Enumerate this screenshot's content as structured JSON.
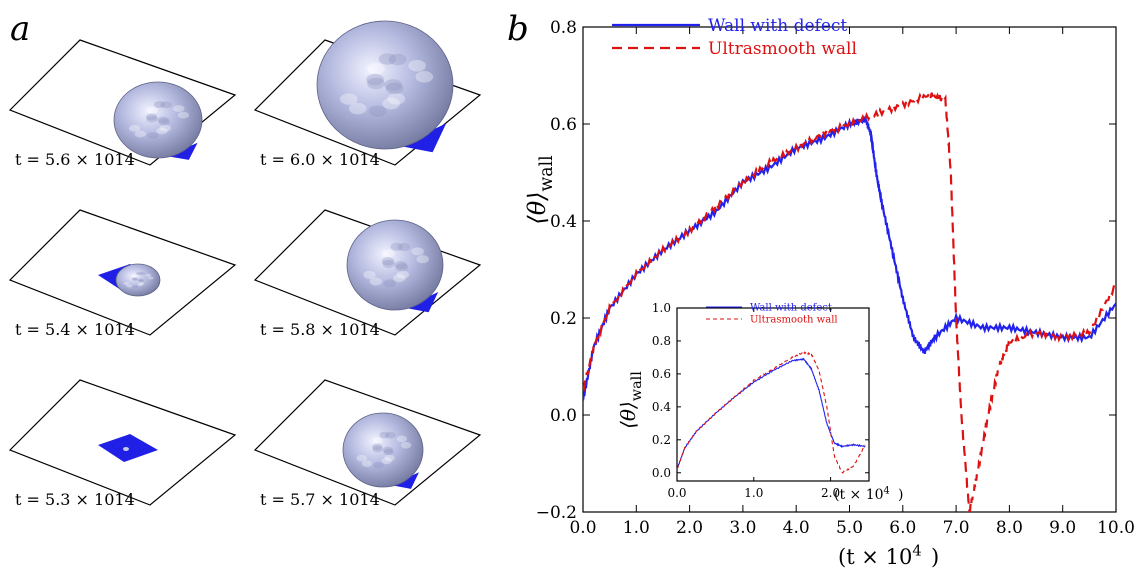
{
  "panel_a": {
    "label": "a",
    "snapshots": [
      {
        "label": "t = 5.6 × 10",
        "exp": "4",
        "state": "small-droplet"
      },
      {
        "label": "t = 6.0 × 10",
        "exp": "4",
        "state": "large-bubble"
      },
      {
        "label": "t = 5.4 × 10",
        "exp": "4",
        "state": "patch-small-droplet"
      },
      {
        "label": "t = 5.8 × 10",
        "exp": "4",
        "state": "medium-bubble"
      },
      {
        "label": "t = 5.3 × 10",
        "exp": "4",
        "state": "patch-only"
      },
      {
        "label": "t = 5.7 × 10",
        "exp": "4",
        "state": "small-bubble"
      }
    ],
    "colors": {
      "defect_patch": "#1f1fe6",
      "bubble": "#a9aed6"
    }
  },
  "chart_data": [
    {
      "type": "line",
      "panel": "b",
      "xlabel": "(t × 10",
      "xlabel_exp": "4",
      "ylabel": "⟨θ⟩",
      "ylabel_sub": "wall",
      "xlim": [
        0,
        10
      ],
      "ylim": [
        -0.2,
        0.8
      ],
      "xticks": [
        "0.0",
        "1.0",
        "2.0",
        "3.0",
        "4.0",
        "5.0",
        "6.0",
        "7.0",
        "8.0",
        "9.0",
        "10.0"
      ],
      "yticks": [
        "−0.2",
        "0.0",
        "0.2",
        "0.4",
        "0.6",
        "0.8"
      ],
      "legend_position": "top-left",
      "series": [
        {
          "name": "Wall with defect",
          "color": "#2222ee",
          "style": "solid",
          "x": [
            0,
            0.2,
            0.5,
            1.0,
            1.5,
            2.0,
            2.5,
            3.0,
            3.5,
            4.0,
            4.5,
            5.0,
            5.3,
            5.4,
            5.5,
            5.6,
            5.8,
            6.0,
            6.2,
            6.4,
            6.6,
            7.0,
            7.5,
            8.0,
            8.5,
            9.0,
            9.5,
            10.0
          ],
          "y": [
            0.03,
            0.14,
            0.22,
            0.29,
            0.34,
            0.38,
            0.42,
            0.48,
            0.51,
            0.55,
            0.57,
            0.6,
            0.61,
            0.58,
            0.5,
            0.44,
            0.34,
            0.24,
            0.16,
            0.13,
            0.16,
            0.2,
            0.18,
            0.18,
            0.17,
            0.16,
            0.16,
            0.23
          ]
        },
        {
          "name": "Ultrasmooth wall",
          "color": "#dd1111",
          "style": "dashed",
          "x": [
            0,
            0.2,
            0.5,
            1.0,
            1.5,
            2.0,
            2.5,
            3.0,
            3.5,
            4.0,
            4.5,
            5.0,
            5.5,
            6.0,
            6.5,
            6.8,
            6.9,
            7.0,
            7.1,
            7.25,
            7.4,
            7.6,
            7.8,
            8.0,
            8.5,
            9.0,
            9.5,
            10.0
          ],
          "y": [
            0.05,
            0.14,
            0.22,
            0.29,
            0.34,
            0.38,
            0.43,
            0.48,
            0.52,
            0.55,
            0.58,
            0.6,
            0.62,
            0.64,
            0.66,
            0.65,
            0.5,
            0.2,
            0.0,
            -0.2,
            -0.12,
            0.0,
            0.1,
            0.15,
            0.17,
            0.16,
            0.17,
            0.27
          ]
        }
      ]
    },
    {
      "type": "line",
      "panel": "b-inset",
      "xlabel": "(t × 10",
      "xlabel_exp": "4",
      "ylabel": "⟨θ⟩",
      "ylabel_sub": "wall",
      "xlim": [
        0,
        2.5
      ],
      "ylim": [
        -0.05,
        1.0
      ],
      "xticks": [
        "0.0",
        "1.0",
        "2.0"
      ],
      "yticks": [
        "0.0",
        "0.2",
        "0.4",
        "0.6",
        "0.8",
        "1.0"
      ],
      "legend_position": "top-right",
      "series": [
        {
          "name": "Wall with defect",
          "color": "#2222ee",
          "style": "solid",
          "x": [
            0,
            0.1,
            0.25,
            0.5,
            0.75,
            1.0,
            1.25,
            1.5,
            1.65,
            1.75,
            1.85,
            1.95,
            2.05,
            2.15,
            2.3,
            2.45
          ],
          "y": [
            0.02,
            0.15,
            0.25,
            0.36,
            0.46,
            0.55,
            0.62,
            0.68,
            0.69,
            0.63,
            0.5,
            0.3,
            0.18,
            0.16,
            0.17,
            0.16
          ]
        },
        {
          "name": "Ultrasmooth wall",
          "color": "#dd1111",
          "style": "dashed",
          "x": [
            0,
            0.1,
            0.25,
            0.5,
            0.75,
            1.0,
            1.25,
            1.5,
            1.65,
            1.75,
            1.85,
            1.95,
            2.05,
            2.15,
            2.3,
            2.45
          ],
          "y": [
            0.02,
            0.15,
            0.25,
            0.36,
            0.46,
            0.56,
            0.63,
            0.7,
            0.73,
            0.72,
            0.62,
            0.4,
            0.1,
            0.0,
            0.04,
            0.17
          ]
        }
      ]
    }
  ]
}
